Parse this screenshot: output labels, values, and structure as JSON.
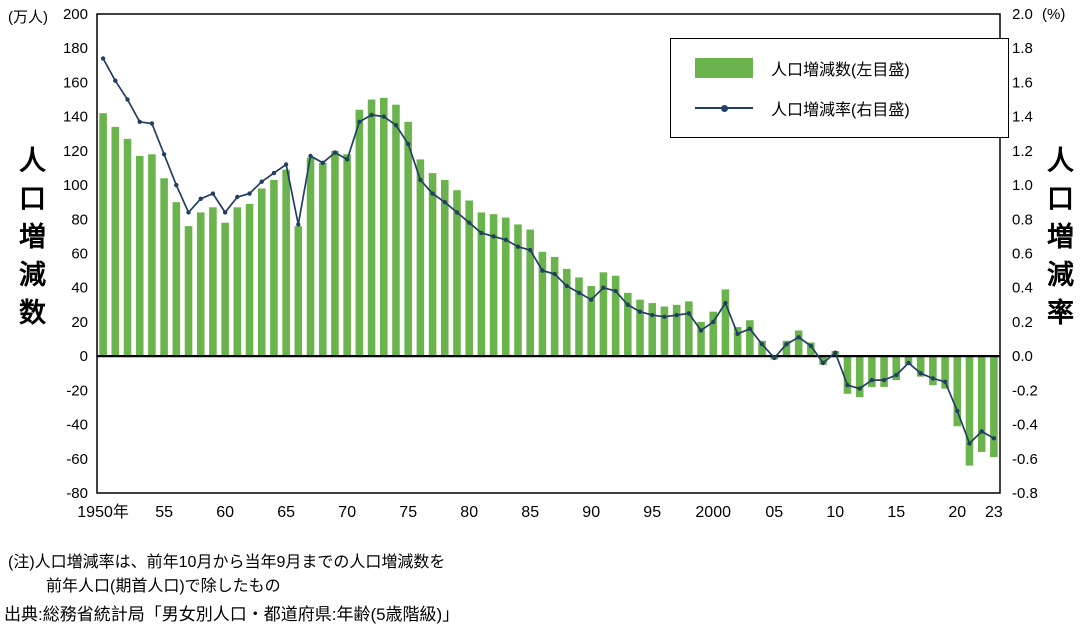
{
  "header": {
    "left_unit": "(万人)",
    "right_unit": "(%)"
  },
  "axis_titles": {
    "left": "人口増減数",
    "right": "人口増減率"
  },
  "legend": {
    "bar_label": "人口増減数(左目盛)",
    "line_label": "人口増減率(右目盛)"
  },
  "notes": {
    "line1": "(注)人口増減率は、前年10月から当年9月までの人口増減数を",
    "line2": "前年人口(期首人口)で除したもの",
    "source": "出典:総務省統計局「男女別人口・都道府県:年齢(5歳階級)」"
  },
  "colors": {
    "bar": "#6bb34c",
    "line": "#223f63",
    "axis": "#000000"
  },
  "chart_data": {
    "type": "bar+line",
    "title": "",
    "xlabel": "",
    "ylabel_left": "人口増減数",
    "ylabel_right": "人口増減率",
    "ylim_left": [
      -80,
      200
    ],
    "ylim_right": [
      -0.8,
      2.0
    ],
    "grid": false,
    "legend_position": "top-right-inside",
    "categories": [
      1950,
      1951,
      1952,
      1953,
      1954,
      1955,
      1956,
      1957,
      1958,
      1959,
      1960,
      1961,
      1962,
      1963,
      1964,
      1965,
      1966,
      1967,
      1968,
      1969,
      1970,
      1971,
      1972,
      1973,
      1974,
      1975,
      1976,
      1977,
      1978,
      1979,
      1980,
      1981,
      1982,
      1983,
      1984,
      1985,
      1986,
      1987,
      1988,
      1989,
      1990,
      1991,
      1992,
      1993,
      1994,
      1995,
      1996,
      1997,
      1998,
      1999,
      2000,
      2001,
      2002,
      2003,
      2004,
      2005,
      2006,
      2007,
      2008,
      2009,
      2010,
      2011,
      2012,
      2013,
      2014,
      2015,
      2016,
      2017,
      2018,
      2019,
      2020,
      2021,
      2022,
      2023
    ],
    "series": [
      {
        "name": "人口増減数(左目盛)",
        "type": "bar",
        "axis": "left",
        "unit": "万人",
        "values": [
          142,
          134,
          127,
          117,
          118,
          104,
          90,
          76,
          84,
          87,
          78,
          87,
          89,
          98,
          103,
          109,
          76,
          116,
          113,
          120,
          118,
          144,
          150,
          151,
          147,
          137,
          115,
          107,
          103,
          97,
          91,
          84,
          83,
          81,
          77,
          74,
          61,
          58,
          51,
          46,
          41,
          49,
          47,
          37,
          33,
          31,
          29,
          30,
          32,
          20,
          26,
          39,
          17,
          21,
          9,
          -2,
          9,
          15,
          8,
          -5,
          3,
          -22,
          -24,
          -18,
          -18,
          -14,
          -5,
          -12,
          -17,
          -19,
          -41,
          -64,
          -56,
          -59
        ]
      },
      {
        "name": "人口増減率(右目盛)",
        "type": "line",
        "axis": "right",
        "unit": "%",
        "values": [
          1.74,
          1.61,
          1.5,
          1.37,
          1.36,
          1.18,
          1.0,
          0.84,
          0.92,
          0.95,
          0.84,
          0.93,
          0.95,
          1.02,
          1.07,
          1.12,
          0.77,
          1.17,
          1.13,
          1.19,
          1.15,
          1.37,
          1.41,
          1.4,
          1.35,
          1.24,
          1.03,
          0.95,
          0.9,
          0.84,
          0.78,
          0.72,
          0.7,
          0.68,
          0.64,
          0.62,
          0.5,
          0.48,
          0.41,
          0.37,
          0.33,
          0.4,
          0.38,
          0.3,
          0.26,
          0.24,
          0.23,
          0.24,
          0.25,
          0.15,
          0.2,
          0.31,
          0.13,
          0.16,
          0.07,
          -0.01,
          0.07,
          0.11,
          0.06,
          -0.04,
          0.02,
          -0.17,
          -0.19,
          -0.14,
          -0.14,
          -0.11,
          -0.04,
          -0.1,
          -0.13,
          -0.15,
          -0.32,
          -0.51,
          -0.44,
          -0.48
        ]
      }
    ],
    "y_left_ticks": [
      "200",
      "180",
      "160",
      "140",
      "120",
      "100",
      "80",
      "60",
      "40",
      "20",
      "0",
      "-20",
      "-40",
      "-60",
      "-80"
    ],
    "y_right_ticks": [
      "2.0",
      "1.8",
      "1.6",
      "1.4",
      "1.2",
      "1.0",
      "0.8",
      "0.6",
      "0.4",
      "0.2",
      "0.0",
      "-0.2",
      "-0.4",
      "-0.6",
      "-0.8"
    ],
    "x_ticks": [
      {
        "i": 0,
        "label": "1950年"
      },
      {
        "i": 5,
        "label": "55"
      },
      {
        "i": 10,
        "label": "60"
      },
      {
        "i": 15,
        "label": "65"
      },
      {
        "i": 20,
        "label": "70"
      },
      {
        "i": 25,
        "label": "75"
      },
      {
        "i": 30,
        "label": "80"
      },
      {
        "i": 35,
        "label": "85"
      },
      {
        "i": 40,
        "label": "90"
      },
      {
        "i": 45,
        "label": "95"
      },
      {
        "i": 50,
        "label": "2000"
      },
      {
        "i": 55,
        "label": "05"
      },
      {
        "i": 60,
        "label": "10"
      },
      {
        "i": 65,
        "label": "15"
      },
      {
        "i": 70,
        "label": "20"
      },
      {
        "i": 73,
        "label": "23"
      }
    ]
  }
}
